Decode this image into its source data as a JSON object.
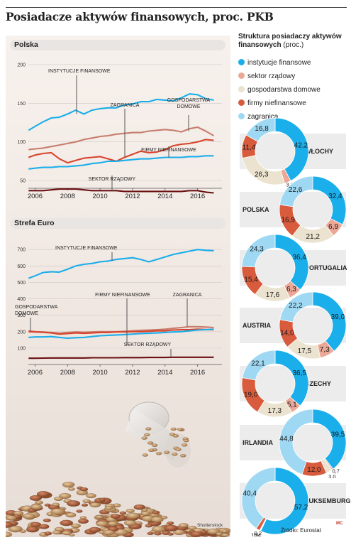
{
  "title": "Posiadacze aktywów finansowych, proc. PKB",
  "credit": "Shutterstock",
  "source": "Źródło: Eurostat",
  "signature": "MC",
  "colors": {
    "instytucje": "#1aaeea",
    "sektor": "#eba897",
    "gospodarstwa": "#ebe3cf",
    "firmy": "#d95b3d",
    "zagranica": "#9fd8f3",
    "sektor_line": "#6b1013",
    "gosp_line": "#c87c6c",
    "firmy_line": "#d8452d"
  },
  "chart_data": [
    {
      "type": "line",
      "title": "Polska",
      "x": [
        2005.6,
        2006,
        2006.5,
        2007,
        2007.5,
        2008,
        2008.5,
        2009,
        2009.5,
        2010,
        2010.5,
        2011,
        2011.5,
        2012,
        2012.5,
        2013,
        2013.5,
        2014,
        2014.5,
        2015,
        2015.5,
        2016,
        2016.5,
        2017
      ],
      "xticks": [
        2006,
        2008,
        2010,
        2012,
        2014,
        2016
      ],
      "yticks": [
        50,
        100,
        150,
        200
      ],
      "ylim": [
        40,
        210
      ],
      "xlim": [
        2005.5,
        2017.5
      ],
      "series": [
        {
          "name": "INSTYTUCJE FINANSOWE",
          "key": "instytucje",
          "values": [
            115,
            120,
            126,
            131,
            132,
            136,
            141,
            136,
            141,
            143,
            144,
            144,
            148,
            149,
            152,
            152,
            155,
            154,
            153,
            157,
            162,
            161,
            156,
            154
          ]
        },
        {
          "name": "GOSPODARSTWA DOMOWE",
          "key": "gosp_line",
          "values": [
            90,
            91,
            92,
            94,
            96,
            98,
            100,
            103,
            105,
            107,
            108,
            110,
            111,
            112,
            112,
            114,
            115,
            116,
            115,
            113,
            117,
            119,
            114,
            108
          ]
        },
        {
          "name": "ZAGRANICA",
          "key": "firmy_line",
          "values": [
            80,
            83,
            85,
            86,
            78,
            73,
            76,
            79,
            80,
            81,
            78,
            75,
            80,
            84,
            88,
            86,
            87,
            90,
            95,
            97,
            98,
            100,
            103,
            102
          ]
        },
        {
          "name": "FIRMY NIEFINANSOWE",
          "key": "instytucje",
          "values": [
            65,
            66,
            67,
            67,
            68,
            68,
            69,
            70,
            72,
            73,
            75,
            75,
            76,
            77,
            78,
            78,
            79,
            80,
            80,
            80,
            81,
            81,
            82,
            82
          ]
        },
        {
          "name": "SEKTOR RZĄDOWY",
          "key": "sektor_line",
          "values": [
            37,
            37,
            37,
            38,
            39,
            39,
            39,
            38,
            37,
            37,
            37,
            37,
            36,
            36,
            36,
            36,
            36,
            36,
            36,
            36,
            37,
            37,
            35,
            34
          ]
        }
      ]
    },
    {
      "type": "line",
      "title": "Strefa Euro",
      "x": [
        2005.6,
        2006,
        2006.5,
        2007,
        2007.5,
        2008,
        2008.5,
        2009,
        2009.5,
        2010,
        2010.5,
        2011,
        2011.5,
        2012,
        2012.5,
        2013,
        2013.5,
        2014,
        2014.5,
        2015,
        2015.5,
        2016,
        2016.5,
        2017
      ],
      "xticks": [
        2006,
        2008,
        2010,
        2012,
        2014,
        2016
      ],
      "yticks": [
        100,
        200,
        300,
        400,
        500,
        600,
        700
      ],
      "ylim": [
        0,
        770
      ],
      "xlim": [
        2005.5,
        2017.5
      ],
      "series": [
        {
          "name": "INSTYTUCJE FINANSOWE",
          "key": "instytucje",
          "values": [
            525,
            540,
            560,
            565,
            563,
            580,
            600,
            610,
            615,
            625,
            630,
            640,
            645,
            650,
            640,
            625,
            640,
            655,
            670,
            680,
            690,
            700,
            695,
            693
          ]
        },
        {
          "name": "ZAGRANICA",
          "key": "gosp_line",
          "values": [
            205,
            200,
            198,
            195,
            190,
            195,
            198,
            197,
            198,
            200,
            200,
            200,
            202,
            205,
            208,
            210,
            212,
            215,
            220,
            225,
            230,
            230,
            228,
            225
          ]
        },
        {
          "name": "GOSPODARSTWA DOMOWE",
          "key": "firmy_line",
          "values": [
            200,
            198,
            196,
            192,
            185,
            188,
            192,
            190,
            192,
            195,
            195,
            198,
            198,
            200,
            200,
            202,
            205,
            205,
            210,
            212,
            212,
            215,
            213,
            212
          ]
        },
        {
          "name": "FIRMY NIEFINANSOWE",
          "key": "instytucje",
          "values": [
            165,
            168,
            168,
            170,
            165,
            160,
            163,
            165,
            170,
            175,
            178,
            180,
            182,
            185,
            188,
            190,
            192,
            195,
            198,
            200,
            205,
            210,
            212,
            215
          ]
        },
        {
          "name": "SEKTOR RZĄDOWY",
          "key": "sektor_line",
          "values": [
            38,
            38,
            39,
            40,
            40,
            40,
            40,
            40,
            41,
            41,
            41,
            41,
            42,
            42,
            42,
            43,
            43,
            43,
            44,
            44,
            44,
            44,
            44,
            44
          ]
        }
      ]
    },
    {
      "type": "pie",
      "title": "Struktura posiadaczy aktywów finansowych",
      "subtitle": "(proc.)",
      "legend": [
        {
          "label": "instytucje finansowe",
          "key": "instytucje"
        },
        {
          "label": "sektor rządowy",
          "key": "sektor"
        },
        {
          "label": "gospodarstwa domowe",
          "key": "gospodarstwa"
        },
        {
          "label": "firmy niefinansowe",
          "key": "firmy"
        },
        {
          "label": "zagranica",
          "key": "zagranica"
        }
      ],
      "countries": [
        {
          "name": "WŁOCHY",
          "values": [
            42.2,
            3.2,
            26.3,
            11.4,
            16.8
          ],
          "labels": [
            "42,2",
            "3,2",
            "26,3",
            "11,4",
            "16,8"
          ]
        },
        {
          "name": "POLSKA",
          "values": [
            32.4,
            6.9,
            21.2,
            16.9,
            22.6
          ],
          "labels": [
            "32,4",
            "6,9",
            "21,2",
            "16,9",
            "22,6"
          ]
        },
        {
          "name": "PORTUGALIA",
          "values": [
            36.4,
            6.3,
            17.6,
            15.4,
            24.3
          ],
          "labels": [
            "36,4",
            "6,3",
            "17,6",
            "15,4",
            "24,3"
          ]
        },
        {
          "name": "AUSTRIA",
          "values": [
            39.0,
            7.3,
            17.5,
            14.0,
            22.2
          ],
          "labels": [
            "39,0",
            "7,3",
            "17,5",
            "14,0",
            "22,2"
          ]
        },
        {
          "name": "CZECHY",
          "values": [
            36.5,
            5.1,
            17.3,
            19.0,
            22.1
          ],
          "labels": [
            "36,5",
            "5,1",
            "17,3",
            "19,0",
            "22,1"
          ]
        },
        {
          "name": "IRLANDIA",
          "values": [
            39.5,
            0.7,
            3.0,
            12.0,
            44.8
          ],
          "labels": [
            "39,5",
            "0,7",
            "3,0",
            "12,0",
            "44,8"
          ]
        },
        {
          "name": "LUKSEMBURG",
          "values": [
            57.2,
            0.2,
            0.4,
            1.9,
            40.4
          ],
          "labels": [
            "57,2",
            "0,2",
            "0,4",
            "1,9",
            "40,4"
          ]
        }
      ]
    }
  ]
}
